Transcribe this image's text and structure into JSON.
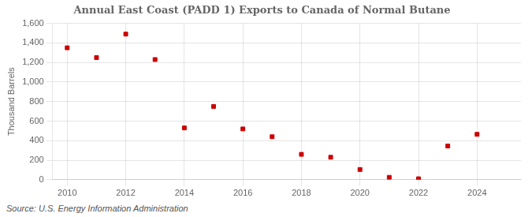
{
  "chart_data": {
    "type": "scatter",
    "title": "Annual East Coast (PADD 1) Exports to Canada of Normal Butane",
    "ylabel": "Thousand Barrels",
    "source": "Source: U.S. Energy Information Administration",
    "x": [
      2010,
      2011,
      2012,
      2013,
      2014,
      2015,
      2016,
      2017,
      2018,
      2019,
      2020,
      2021,
      2022,
      2023,
      2024
    ],
    "values": [
      1350,
      1250,
      1490,
      1230,
      530,
      750,
      520,
      440,
      260,
      230,
      105,
      25,
      10,
      345,
      465
    ],
    "color": "#cc0000",
    "marker": "square",
    "xlim": [
      2009.5,
      2025.5
    ],
    "xticks": [
      2010,
      2012,
      2014,
      2016,
      2018,
      2020,
      2022,
      2024
    ],
    "ylim": [
      0,
      1600
    ],
    "yticks": [
      0,
      200,
      400,
      600,
      800,
      {
        "value": 1000,
        "label": "1,000"
      },
      {
        "value": 1200,
        "label": "1,200"
      },
      {
        "value": 1400,
        "label": "1,400"
      },
      {
        "value": 1600,
        "label": "1,600"
      }
    ],
    "grid": true
  }
}
